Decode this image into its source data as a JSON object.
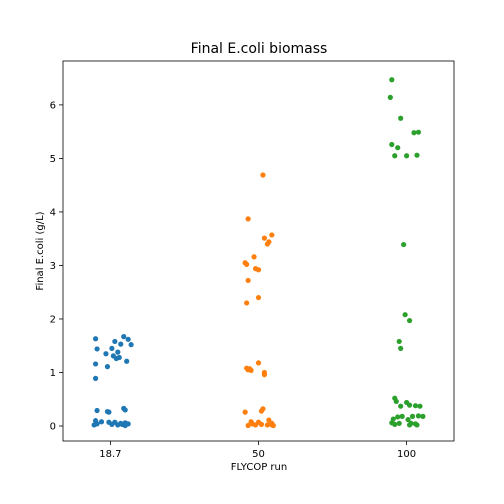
{
  "chart_data": {
    "type": "scatter",
    "title": "Final E.coli biomass",
    "xlabel": "FLYCOP run",
    "ylabel": "Final E.coli (g/L)",
    "categories": [
      "18.7",
      "50",
      "100"
    ],
    "ylim": [
      -0.28,
      6.82
    ],
    "yticks": [
      0,
      1,
      2,
      3,
      4,
      5,
      6
    ],
    "grid": false,
    "series": [
      {
        "category": "18.7",
        "color": "#1f77b4",
        "points": [
          {
            "x": -0.1,
            "y": 1.63
          },
          {
            "x": 0.12,
            "y": 1.62
          },
          {
            "x": 0.03,
            "y": 1.58
          },
          {
            "x": 0.07,
            "y": 1.53
          },
          {
            "x": 0.14,
            "y": 1.52
          },
          {
            "x": 0.09,
            "y": 1.67
          },
          {
            "x": -0.09,
            "y": 1.44
          },
          {
            "x": 0.01,
            "y": 1.45
          },
          {
            "x": 0.05,
            "y": 1.38
          },
          {
            "x": -0.03,
            "y": 1.35
          },
          {
            "x": 0.02,
            "y": 1.31
          },
          {
            "x": 0.06,
            "y": 1.28
          },
          {
            "x": 0.04,
            "y": 1.26
          },
          {
            "x": 0.11,
            "y": 1.21
          },
          {
            "x": -0.1,
            "y": 1.16
          },
          {
            "x": -0.02,
            "y": 1.11
          },
          {
            "x": -0.1,
            "y": 0.89
          },
          {
            "x": -0.09,
            "y": 0.29
          },
          {
            "x": 0.09,
            "y": 0.33
          },
          {
            "x": 0.1,
            "y": 0.3
          },
          {
            "x": -0.02,
            "y": 0.27
          },
          {
            "x": -0.01,
            "y": 0.26
          },
          {
            "x": -0.1,
            "y": 0.1
          },
          {
            "x": -0.06,
            "y": 0.08
          },
          {
            "x": -0.01,
            "y": 0.07
          },
          {
            "x": 0.03,
            "y": 0.07
          },
          {
            "x": 0.07,
            "y": 0.05
          },
          {
            "x": 0.1,
            "y": 0.06
          },
          {
            "x": -0.09,
            "y": 0.04
          },
          {
            "x": 0.01,
            "y": 0.03
          },
          {
            "x": 0.05,
            "y": 0.02
          },
          {
            "x": 0.08,
            "y": 0.03
          },
          {
            "x": 0.12,
            "y": 0.04
          },
          {
            "x": -0.11,
            "y": 0.02
          },
          {
            "x": 0.1,
            "y": 0.01
          }
        ]
      },
      {
        "category": "50",
        "color": "#ff7f0e",
        "points": [
          {
            "x": 0.03,
            "y": 4.69
          },
          {
            "x": -0.07,
            "y": 3.87
          },
          {
            "x": 0.09,
            "y": 3.57
          },
          {
            "x": 0.04,
            "y": 3.51
          },
          {
            "x": 0.07,
            "y": 3.44
          },
          {
            "x": 0.06,
            "y": 3.4
          },
          {
            "x": -0.03,
            "y": 3.16
          },
          {
            "x": -0.09,
            "y": 3.05
          },
          {
            "x": -0.08,
            "y": 3.02
          },
          {
            "x": -0.02,
            "y": 2.94
          },
          {
            "x": 0.0,
            "y": 2.92
          },
          {
            "x": -0.07,
            "y": 2.72
          },
          {
            "x": 0.0,
            "y": 2.4
          },
          {
            "x": -0.08,
            "y": 2.3
          },
          {
            "x": 0.0,
            "y": 1.18
          },
          {
            "x": -0.08,
            "y": 1.08
          },
          {
            "x": -0.06,
            "y": 1.07
          },
          {
            "x": -0.07,
            "y": 1.05
          },
          {
            "x": -0.05,
            "y": 1.04
          },
          {
            "x": 0.04,
            "y": 1.0
          },
          {
            "x": 0.04,
            "y": 0.96
          },
          {
            "x": 0.03,
            "y": 0.32
          },
          {
            "x": 0.02,
            "y": 0.28
          },
          {
            "x": -0.09,
            "y": 0.26
          },
          {
            "x": 0.07,
            "y": 0.11
          },
          {
            "x": -0.05,
            "y": 0.08
          },
          {
            "x": 0.0,
            "y": 0.07
          },
          {
            "x": 0.09,
            "y": 0.05
          },
          {
            "x": -0.04,
            "y": 0.04
          },
          {
            "x": 0.02,
            "y": 0.03
          },
          {
            "x": 0.06,
            "y": 0.02
          },
          {
            "x": -0.02,
            "y": 0.02
          },
          {
            "x": 0.09,
            "y": 0.02
          },
          {
            "x": -0.07,
            "y": 0.01
          },
          {
            "x": 0.1,
            "y": 0.01
          }
        ]
      },
      {
        "category": "100",
        "color": "#2ca02c",
        "points": [
          {
            "x": -0.1,
            "y": 6.47
          },
          {
            "x": -0.11,
            "y": 6.14
          },
          {
            "x": -0.04,
            "y": 5.75
          },
          {
            "x": 0.08,
            "y": 5.49
          },
          {
            "x": 0.05,
            "y": 5.48
          },
          {
            "x": -0.1,
            "y": 5.26
          },
          {
            "x": -0.06,
            "y": 5.2
          },
          {
            "x": -0.08,
            "y": 5.05
          },
          {
            "x": 0.0,
            "y": 5.05
          },
          {
            "x": 0.07,
            "y": 5.06
          },
          {
            "x": -0.02,
            "y": 3.39
          },
          {
            "x": -0.01,
            "y": 2.08
          },
          {
            "x": 0.02,
            "y": 1.97
          },
          {
            "x": -0.05,
            "y": 1.58
          },
          {
            "x": -0.04,
            "y": 1.45
          },
          {
            "x": -0.08,
            "y": 0.52
          },
          {
            "x": -0.07,
            "y": 0.46
          },
          {
            "x": 0.0,
            "y": 0.44
          },
          {
            "x": 0.02,
            "y": 0.39
          },
          {
            "x": -0.04,
            "y": 0.37
          },
          {
            "x": 0.06,
            "y": 0.38
          },
          {
            "x": 0.09,
            "y": 0.37
          },
          {
            "x": -0.06,
            "y": 0.17
          },
          {
            "x": -0.03,
            "y": 0.18
          },
          {
            "x": 0.04,
            "y": 0.18
          },
          {
            "x": 0.08,
            "y": 0.19
          },
          {
            "x": 0.11,
            "y": 0.18
          },
          {
            "x": -0.09,
            "y": 0.13
          },
          {
            "x": 0.01,
            "y": 0.12
          },
          {
            "x": -0.1,
            "y": 0.06
          },
          {
            "x": -0.05,
            "y": 0.05
          },
          {
            "x": 0.03,
            "y": 0.05
          },
          {
            "x": 0.06,
            "y": 0.04
          },
          {
            "x": -0.08,
            "y": 0.03
          },
          {
            "x": 0.02,
            "y": 0.02
          },
          {
            "x": 0.07,
            "y": 0.02
          }
        ]
      }
    ]
  }
}
